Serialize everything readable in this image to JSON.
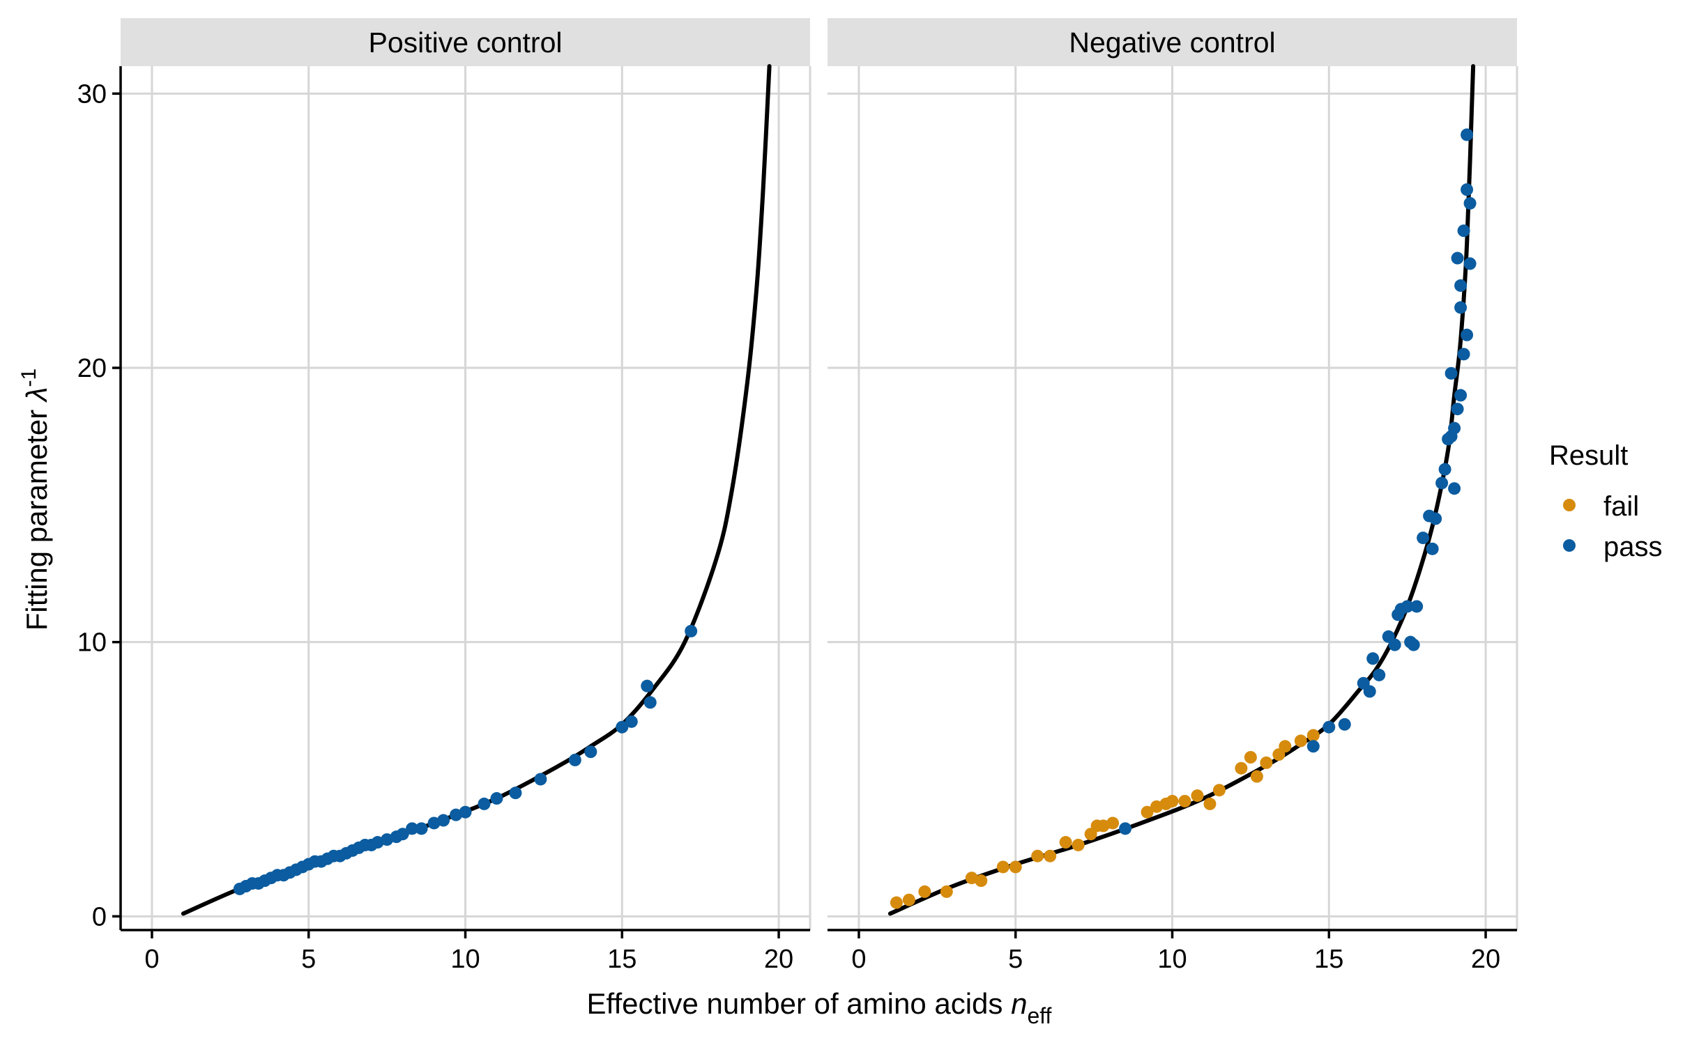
{
  "colors": {
    "fail": "#D68B0D",
    "pass": "#0B5CA0",
    "curve": "#000000",
    "strip": "#E0E0E0",
    "grid": "#D6D6D6"
  },
  "legend": {
    "title": "Result",
    "placement": "right",
    "items": [
      {
        "label": "fail",
        "color": "#D68B0D"
      },
      {
        "label": "pass",
        "color": "#0B5CA0"
      }
    ]
  },
  "xlabel_main": "Effective number of amino acids ",
  "xlabel_var": "n",
  "xlabel_sub": "eff",
  "ylabel_main": "Fitting parameter ",
  "ylabel_var": "λ",
  "ylabel_sup": "-1",
  "chart_data": [
    {
      "type": "scatter",
      "panel": "Positive control",
      "xlim": [
        -1,
        21
      ],
      "ylim": [
        -0.5,
        31
      ],
      "xticks": [
        0,
        5,
        10,
        15,
        20
      ],
      "yticks": [
        0,
        10,
        20,
        30
      ],
      "grid": true,
      "fit_curve": {
        "x": [
          1.0,
          3.0,
          5.0,
          7.0,
          9.0,
          11.0,
          13.0,
          14.0,
          15.0,
          16.0,
          17.0,
          18.0,
          18.5,
          19.0,
          19.3,
          19.5,
          19.7
        ],
        "y": [
          0.1,
          1.1,
          1.9,
          2.6,
          3.4,
          4.3,
          5.5,
          6.2,
          7.0,
          8.3,
          10.0,
          13.0,
          15.5,
          19.5,
          23.0,
          26.5,
          31.0
        ]
      },
      "series": [
        {
          "name": "pass",
          "x": [
            2.8,
            3.0,
            3.2,
            3.4,
            3.6,
            3.8,
            4.0,
            4.2,
            4.4,
            4.6,
            4.8,
            5.0,
            5.2,
            5.4,
            5.6,
            5.8,
            6.0,
            6.2,
            6.4,
            6.6,
            6.8,
            7.0,
            7.2,
            7.5,
            7.8,
            8.0,
            8.3,
            8.6,
            9.0,
            9.3,
            9.7,
            10.0,
            10.6,
            11.0,
            11.6,
            12.4,
            13.5,
            14.0,
            15.0,
            15.3,
            15.8,
            15.9,
            17.2
          ],
          "y": [
            1.0,
            1.1,
            1.2,
            1.2,
            1.3,
            1.4,
            1.5,
            1.5,
            1.6,
            1.7,
            1.8,
            1.9,
            2.0,
            2.0,
            2.1,
            2.2,
            2.2,
            2.3,
            2.4,
            2.5,
            2.6,
            2.6,
            2.7,
            2.8,
            2.9,
            3.0,
            3.2,
            3.2,
            3.4,
            3.5,
            3.7,
            3.8,
            4.1,
            4.3,
            4.5,
            5.0,
            5.7,
            6.0,
            6.9,
            7.1,
            8.4,
            7.8,
            10.4
          ]
        }
      ]
    },
    {
      "type": "scatter",
      "panel": "Negative control",
      "xlim": [
        -1,
        21
      ],
      "ylim": [
        -0.5,
        31
      ],
      "xticks": [
        0,
        5,
        10,
        15,
        20
      ],
      "yticks": [
        0,
        10,
        20,
        30
      ],
      "grid": true,
      "fit_curve": {
        "x": [
          1.0,
          3.0,
          5.0,
          7.0,
          9.0,
          11.0,
          13.0,
          14.0,
          15.0,
          16.0,
          16.5,
          17.0,
          17.5,
          18.0,
          18.4,
          18.8,
          19.0,
          19.2,
          19.4,
          19.6
        ],
        "y": [
          0.1,
          1.1,
          1.9,
          2.6,
          3.4,
          4.3,
          5.5,
          6.2,
          7.0,
          8.3,
          9.0,
          10.0,
          11.3,
          13.0,
          14.7,
          17.0,
          19.0,
          21.0,
          24.5,
          31.0
        ]
      },
      "series": [
        {
          "name": "fail",
          "x": [
            1.2,
            1.6,
            2.1,
            2.8,
            3.6,
            3.9,
            4.6,
            5.0,
            5.7,
            6.1,
            6.6,
            7.0,
            7.4,
            7.6,
            7.8,
            8.1,
            9.2,
            9.5,
            9.8,
            10.0,
            10.4,
            10.8,
            11.2,
            11.5,
            12.2,
            12.5,
            12.7,
            13.0,
            13.4,
            13.6,
            14.1,
            14.5
          ],
          "y": [
            0.5,
            0.6,
            0.9,
            0.9,
            1.4,
            1.3,
            1.8,
            1.8,
            2.2,
            2.2,
            2.7,
            2.6,
            3.0,
            3.3,
            3.3,
            3.4,
            3.8,
            4.0,
            4.1,
            4.2,
            4.2,
            4.4,
            4.1,
            4.6,
            5.4,
            5.8,
            5.1,
            5.6,
            5.9,
            6.2,
            6.4,
            6.6
          ]
        },
        {
          "name": "pass",
          "x": [
            8.5,
            14.5,
            15.0,
            15.5,
            16.1,
            16.3,
            16.4,
            16.6,
            16.9,
            17.1,
            17.2,
            17.3,
            17.5,
            17.6,
            17.7,
            17.8,
            18.0,
            18.2,
            18.3,
            18.4,
            18.6,
            18.7,
            18.8,
            18.9,
            19.0,
            19.1,
            19.2,
            19.3,
            19.4,
            19.5,
            19.2,
            19.5,
            19.1,
            19.3,
            18.9,
            19.0,
            19.4,
            19.2,
            19.4
          ],
          "y": [
            3.2,
            6.2,
            6.9,
            7.0,
            8.5,
            8.2,
            9.4,
            8.8,
            10.2,
            9.9,
            11.0,
            11.2,
            11.3,
            10.0,
            9.9,
            11.3,
            13.8,
            14.6,
            13.4,
            14.5,
            15.8,
            16.3,
            17.4,
            17.5,
            17.8,
            18.5,
            19.0,
            20.5,
            21.2,
            23.8,
            22.2,
            26.0,
            24.0,
            25.0,
            19.8,
            15.6,
            28.5,
            23.0,
            26.5
          ]
        }
      ]
    }
  ]
}
